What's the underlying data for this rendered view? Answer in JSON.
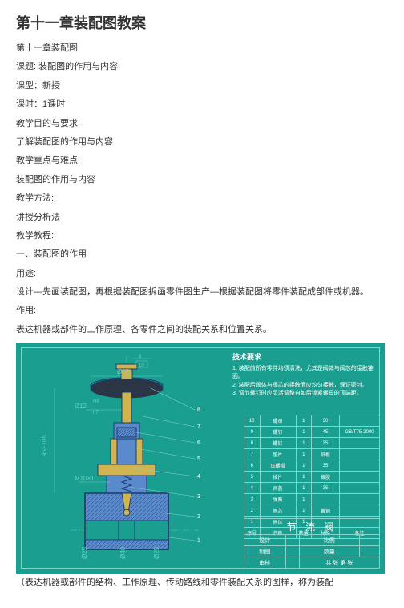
{
  "title": "第十一章装配图教案",
  "lines": [
    "第十一章装配图",
    "课题: 装配图的作用与内容",
    "课型：新授",
    "课时：1课时",
    "教学目的与要求:",
    "了解装配图的作用与内容",
    "教学重点与难点:",
    "装配图的作用与内容",
    "教学方法:",
    "讲授分析法",
    "教学教程:",
    "一、装配图的作用",
    "用途:",
    "设计—先画装配图，再根据装配图拆画零件图生产—根据装配图将零件装配成部件或机器。",
    "作用:",
    "表达机器或部件的工作原理、各零件之间的装配关系和位置关系。"
  ],
  "caption": "（表达机器或部件的结构、工作原理、传动路线和零件装配关系的图样，称为装配",
  "tech_req_title": "技术要求",
  "tech_req_1": "1. 装配前所有零件均须清洗，尤其是阀体与阀芯的接触锥面。",
  "tech_req_2": "2. 装配后阀体与阀芯的接触面应均匀接触，保证密封。",
  "tech_req_3": "3. 调节螺钉时应灵活调整自如后锁紧螺母的顶端距。",
  "parts": [
    {
      "no": "10",
      "name": "螺母",
      "qty": "1",
      "mat": "30"
    },
    {
      "no": "9",
      "name": "螺钉",
      "qty": "1",
      "mat": "45",
      "std": "GB/T75-2000"
    },
    {
      "no": "8",
      "name": "螺钉",
      "qty": "1",
      "mat": "35"
    },
    {
      "no": "7",
      "name": "垫片",
      "qty": "1",
      "mat": "纸板"
    },
    {
      "no": "6",
      "name": "压螺帽",
      "qty": "1",
      "mat": "35"
    },
    {
      "no": "5",
      "name": "插片",
      "qty": "1",
      "mat": "橡胶"
    },
    {
      "no": "4",
      "name": "阀盖",
      "qty": "1",
      "mat": "35"
    },
    {
      "no": "3",
      "name": "弹簧",
      "qty": "1",
      "mat": "",
      "std": ""
    },
    {
      "no": "2",
      "name": "阀芯",
      "qty": "1",
      "mat": "黄铜"
    },
    {
      "no": "1",
      "name": "阀体",
      "qty": "1",
      "mat": "",
      "std": ""
    }
  ],
  "header": [
    "序号",
    "名称",
    "数量",
    "材料",
    "备注"
  ],
  "title_block_main": "节 流 阀",
  "title_block_rows": [
    [
      "设计",
      "",
      "比例",
      ""
    ],
    [
      "制图",
      "",
      "数量",
      ""
    ],
    [
      "审核",
      "",
      "共 张 第 张",
      ""
    ]
  ],
  "dims": {
    "d65": "Ø65",
    "d12": "Ø12",
    "h8": "H8",
    "h7": "h7",
    "v95": "95~105",
    "m10": "M10×1",
    "d25a": "Ø25",
    "d25b": "Ø25",
    "d40": "Ø40",
    "top9": "9",
    "top10": "10"
  },
  "callouts": [
    "1",
    "2",
    "3",
    "4",
    "5",
    "6",
    "7",
    "8"
  ]
}
